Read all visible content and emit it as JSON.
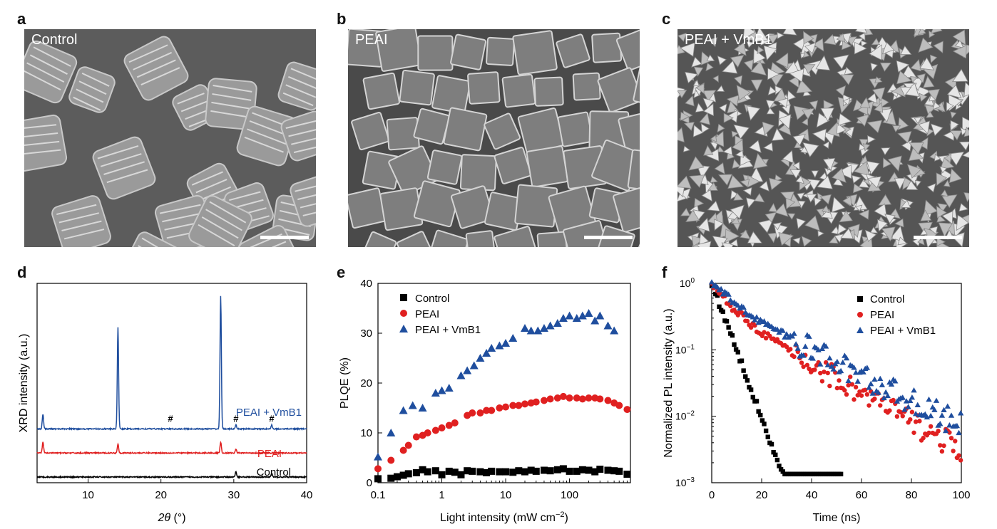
{
  "panels": {
    "a": {
      "letter": "a",
      "label": "Control"
    },
    "b": {
      "letter": "b",
      "label": "PEAI"
    },
    "c": {
      "letter": "c",
      "label": "PEAI + VmB1"
    },
    "d": {
      "letter": "d"
    },
    "e": {
      "letter": "e"
    },
    "f": {
      "letter": "f"
    }
  },
  "colors": {
    "control": "#000000",
    "peai": "#e02020",
    "vmb1": "#1f4e9e",
    "sem_bg": "#5c5c5c"
  },
  "chart_data": [
    {
      "id": "d",
      "type": "line",
      "ylabel": "XRD intensity (a.u.)",
      "xlabel_sym": "2θ",
      "xlabel_unit": " (°)",
      "xlim": [
        3,
        40
      ],
      "xticks": [
        10,
        20,
        30,
        40
      ],
      "xtick_labels": [
        "10",
        "20",
        "30",
        "40"
      ],
      "annotation": "#",
      "annotation_x": [
        21.3,
        30.3,
        35.2
      ],
      "series": [
        {
          "name": "Control",
          "offset": 0.0,
          "peaks": [
            [
              30.3,
              0.03
            ],
            [
              35.2,
              0.02
            ]
          ]
        },
        {
          "name": "PEAI",
          "offset": 0.13,
          "peaks": [
            [
              3.8,
              0.06
            ],
            [
              14.1,
              0.05
            ],
            [
              28.2,
              0.06
            ],
            [
              30.3,
              0.02
            ]
          ]
        },
        {
          "name": "PEAI + VmB1",
          "offset": 0.26,
          "peaks": [
            [
              3.8,
              0.08
            ],
            [
              14.1,
              0.55
            ],
            [
              28.2,
              0.72
            ],
            [
              30.3,
              0.02
            ],
            [
              35.2,
              0.02
            ]
          ]
        }
      ]
    },
    {
      "id": "e",
      "type": "scatter",
      "xscale": "log",
      "xlabel": "Light intensity (mW cm",
      "xlabel_sup": "−2",
      "xlabel_close": ")",
      "ylabel": "PLQE (%)",
      "xlim": [
        0.1,
        900
      ],
      "ylim": [
        0,
        40
      ],
      "xticks": [
        0.1,
        1,
        10,
        100
      ],
      "xtick_labels": [
        "0.1",
        "1",
        "10",
        "100"
      ],
      "yticks": [
        0,
        10,
        20,
        30,
        40
      ],
      "ytick_labels": [
        "0",
        "10",
        "20",
        "30",
        "40"
      ],
      "legend": [
        "Control",
        "PEAI",
        "PEAI + VmB1"
      ],
      "series": [
        {
          "name": "Control",
          "marker": "square",
          "x": [
            0.1,
            0.16,
            0.2,
            0.25,
            0.3,
            0.4,
            0.5,
            0.6,
            0.8,
            1,
            1.3,
            1.6,
            2,
            2.5,
            3,
            4,
            5,
            6,
            8,
            10,
            13,
            16,
            20,
            25,
            30,
            40,
            50,
            65,
            80,
            100,
            130,
            160,
            200,
            250,
            300,
            400,
            500,
            600,
            800
          ],
          "y": [
            0.8,
            0.9,
            1.2,
            1.5,
            1.8,
            2.0,
            2.6,
            2.2,
            2.4,
            1.6,
            2.3,
            2.1,
            1.6,
            2.4,
            2.3,
            2.2,
            2.0,
            2.3,
            2.2,
            2.2,
            2.1,
            2.4,
            2.2,
            2.5,
            2.3,
            2.5,
            2.4,
            2.6,
            2.8,
            2.3,
            2.3,
            2.6,
            2.5,
            2.2,
            2.7,
            2.5,
            2.4,
            2.3,
            1.7
          ]
        },
        {
          "name": "PEAI",
          "marker": "circle",
          "x": [
            0.1,
            0.16,
            0.25,
            0.3,
            0.4,
            0.5,
            0.6,
            0.8,
            1,
            1.3,
            1.6,
            2.5,
            3,
            4,
            5,
            6,
            8,
            10,
            13,
            16,
            20,
            25,
            30,
            40,
            50,
            65,
            80,
            100,
            130,
            160,
            200,
            250,
            300,
            400,
            500,
            600,
            800
          ],
          "y": [
            2.8,
            4.5,
            6.5,
            7.5,
            9.2,
            9.5,
            10.0,
            10.5,
            11.0,
            11.5,
            12.0,
            13.5,
            14.0,
            14.0,
            14.5,
            14.5,
            15.0,
            15.2,
            15.5,
            15.5,
            15.8,
            16.0,
            16.2,
            16.5,
            16.8,
            17.0,
            17.3,
            17.0,
            17.0,
            16.8,
            17.0,
            17.0,
            16.8,
            16.5,
            16.0,
            15.5,
            14.7
          ]
        },
        {
          "name": "PEAI + VmB1",
          "marker": "triangle",
          "x": [
            0.1,
            0.16,
            0.25,
            0.35,
            0.5,
            0.8,
            1,
            1.3,
            2,
            2.5,
            3.2,
            4,
            5,
            6,
            8,
            10,
            13,
            20,
            25,
            32,
            40,
            50,
            65,
            80,
            100,
            130,
            160,
            200,
            250,
            300,
            400,
            500
          ],
          "y": [
            5.2,
            10.0,
            14.5,
            15.5,
            15.0,
            18.0,
            18.5,
            19.0,
            21.5,
            22.5,
            23.5,
            25.0,
            26.0,
            27.0,
            27.5,
            28.0,
            29.0,
            31.0,
            30.5,
            30.5,
            31.0,
            31.5,
            32.0,
            33.0,
            33.5,
            33.0,
            33.5,
            34.0,
            32.5,
            33.5,
            31.5,
            30.5
          ]
        }
      ]
    },
    {
      "id": "f",
      "type": "scatter",
      "yscale": "log",
      "xlabel": "Time (ns)",
      "ylabel": "Normalized PL intensity (a.u.)",
      "xlim": [
        0,
        100
      ],
      "ylim": [
        0.001,
        1
      ],
      "xticks": [
        0,
        20,
        40,
        60,
        80,
        100
      ],
      "xtick_labels": [
        "0",
        "20",
        "40",
        "60",
        "80",
        "100"
      ],
      "yticks": [
        1,
        0.1,
        0.01,
        0.001
      ],
      "ytick_labels": [
        [
          "10",
          "0"
        ],
        [
          "10",
          "−1"
        ],
        [
          "10",
          "−2"
        ],
        [
          "10",
          "−3"
        ]
      ],
      "legend": [
        "Control",
        "PEAI",
        "PEAI + VmB1"
      ],
      "series": [
        {
          "name": "Control",
          "marker": "square",
          "tau": 4.3,
          "tmax": 52
        },
        {
          "name": "PEAI",
          "marker": "circle",
          "tau_fast": 6,
          "tau_slow": 20,
          "amp_fast": 0.55,
          "tmax": 100
        },
        {
          "name": "PEAI + VmB1",
          "marker": "triangle",
          "tau_fast": 8,
          "tau_slow": 23,
          "amp_fast": 0.45,
          "tmax": 100
        }
      ]
    }
  ]
}
